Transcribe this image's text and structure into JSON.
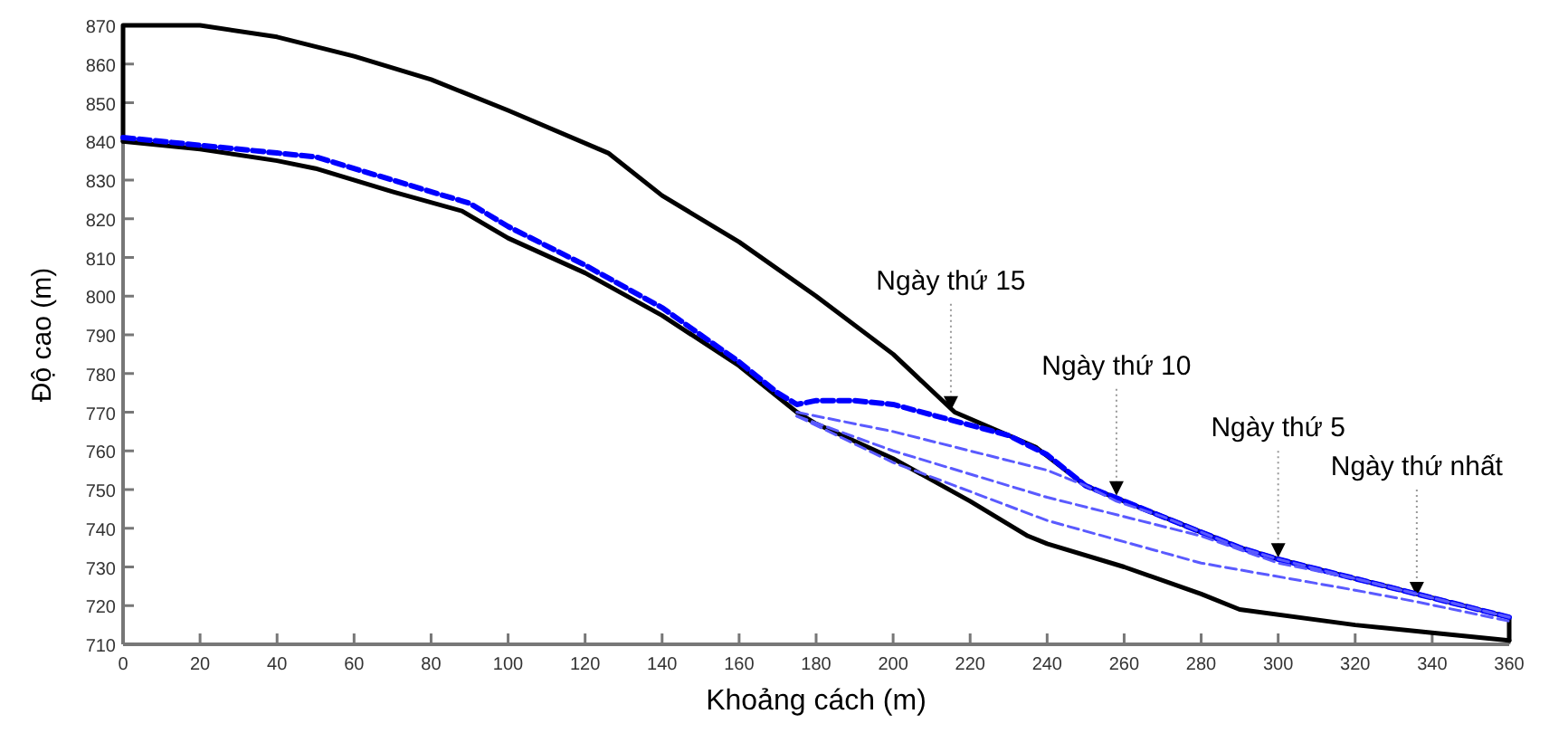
{
  "chart_data": {
    "type": "line",
    "xlabel": "Khoảng cách (m)",
    "ylabel": "Độ cao (m)",
    "xlim": [
      0,
      360
    ],
    "ylim": [
      710,
      870
    ],
    "xticks": [
      0,
      20,
      40,
      60,
      80,
      100,
      120,
      140,
      160,
      180,
      200,
      220,
      240,
      260,
      280,
      300,
      320,
      340,
      360
    ],
    "yticks": [
      710,
      720,
      730,
      740,
      750,
      760,
      770,
      780,
      790,
      800,
      810,
      820,
      830,
      840,
      850,
      860,
      870
    ],
    "marker": "none",
    "series": [
      {
        "color": "#000000",
        "line_style": "solid",
        "x": [
          0,
          0,
          20,
          40,
          60,
          80,
          100,
          126,
          140,
          160,
          180,
          200,
          216,
          237,
          250,
          270,
          290,
          300,
          320,
          340,
          360,
          360
        ],
        "values": [
          840,
          870,
          870,
          867,
          862,
          856,
          848,
          837,
          826,
          814,
          800,
          785,
          770,
          761,
          751,
          743,
          735,
          732,
          727,
          722,
          717,
          711
        ]
      },
      {
        "color": "#000000",
        "line_style": "solid",
        "x": [
          0,
          20,
          40,
          50,
          70,
          88,
          100,
          120,
          140,
          160,
          175,
          180,
          200,
          220,
          235,
          240,
          260,
          280,
          290,
          320,
          340,
          360
        ],
        "values": [
          840,
          838,
          835,
          833,
          827,
          822,
          815,
          806,
          795,
          782,
          770,
          767,
          758,
          747,
          738,
          736,
          730,
          723,
          719,
          715,
          713,
          711
        ]
      },
      {
        "color": "#0000ff",
        "line_style": "dashed",
        "x": [
          0,
          20,
          40,
          50,
          70,
          90,
          100,
          120,
          140,
          160,
          170,
          175,
          180,
          190,
          200,
          215,
          230,
          240,
          250,
          270,
          290,
          300,
          320,
          340,
          360
        ],
        "values": [
          841,
          839,
          837,
          836,
          830,
          824,
          818,
          808,
          797,
          783,
          775,
          772,
          773,
          773,
          772,
          768,
          764,
          759,
          751,
          743,
          735,
          732,
          727,
          722,
          717
        ]
      },
      {
        "color": "#5a5aff",
        "line_style": "dashed",
        "x": [
          175,
          200,
          220,
          240,
          250,
          258,
          270,
          290,
          300,
          320,
          340,
          360
        ],
        "values": [
          770,
          765,
          760,
          755,
          751,
          747,
          743,
          735,
          732,
          727,
          722,
          717
        ]
      },
      {
        "color": "#5a5aff",
        "line_style": "dashed",
        "x": [
          175,
          200,
          240,
          280,
          300,
          320,
          340,
          360
        ],
        "values": [
          769,
          760,
          748,
          738,
          731,
          727,
          722,
          717
        ]
      },
      {
        "color": "#5a5aff",
        "line_style": "dashed",
        "x": [
          175,
          200,
          240,
          280,
          320,
          336,
          360
        ],
        "values": [
          769,
          757,
          742,
          731,
          724,
          721,
          716
        ]
      }
    ],
    "annotations": [
      {
        "text": "Ngày thứ 15",
        "x": 215,
        "y": 769
      },
      {
        "text": "Ngày thứ 10",
        "x": 258,
        "y": 747
      },
      {
        "text": "Ngày thứ 5",
        "x": 300,
        "y": 731
      },
      {
        "text": "Ngày thứ nhất",
        "x": 336,
        "y": 721
      }
    ]
  }
}
